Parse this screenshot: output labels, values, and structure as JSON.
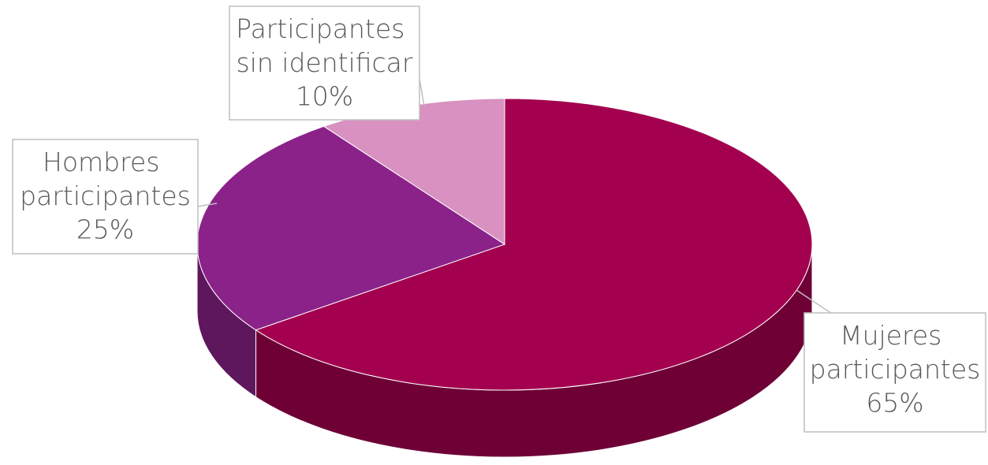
{
  "chart_data": {
    "type": "pie",
    "categories": [
      "Mujeres participantes",
      "Hombres participantes",
      "Participantes sin identificar"
    ],
    "values": [
      65,
      25,
      10
    ],
    "value_labels": [
      "65%",
      "25%",
      "10%"
    ],
    "colors": [
      "#a3004f",
      "#8b2289",
      "#d891c0"
    ],
    "side_colors": [
      "#6e0036",
      "#5e175d",
      "#a06890"
    ]
  }
}
